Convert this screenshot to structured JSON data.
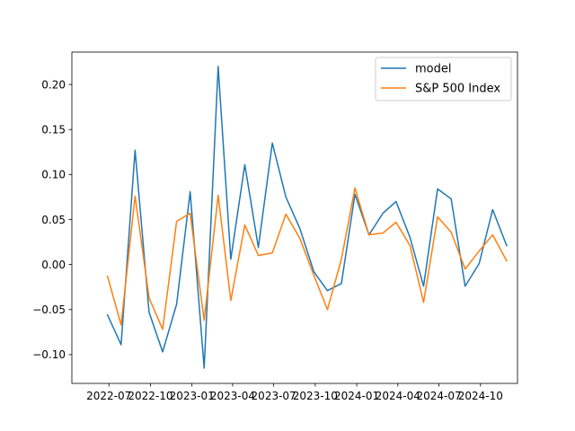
{
  "chart_data": {
    "type": "line",
    "title": "",
    "xlabel": "",
    "ylabel": "",
    "x": [
      "2022-06",
      "2022-07",
      "2022-08",
      "2022-09",
      "2022-10",
      "2022-11",
      "2022-12",
      "2023-01",
      "2023-02",
      "2023-03",
      "2023-04",
      "2023-05",
      "2023-06",
      "2023-07",
      "2023-08",
      "2023-09",
      "2023-10",
      "2023-11",
      "2023-12",
      "2024-01",
      "2024-02",
      "2024-03",
      "2024-04",
      "2024-05",
      "2024-06",
      "2024-07",
      "2024-08",
      "2024-09",
      "2024-10",
      "2024-11"
    ],
    "series": [
      {
        "name": "model",
        "color": "#1f77b4",
        "values": [
          -0.056,
          -0.089,
          0.127,
          -0.053,
          -0.097,
          -0.044,
          0.081,
          -0.115,
          0.22,
          0.006,
          0.111,
          0.019,
          0.135,
          0.075,
          0.04,
          -0.008,
          -0.029,
          -0.021,
          0.078,
          0.033,
          0.057,
          0.07,
          0.03,
          -0.024,
          0.084,
          0.073,
          -0.024,
          0.001,
          0.061,
          0.021
        ]
      },
      {
        "name": "S&P 500 Index",
        "color": "#ff7f0e",
        "values": [
          -0.013,
          -0.067,
          0.076,
          -0.037,
          -0.072,
          0.048,
          0.057,
          -0.062,
          0.077,
          -0.04,
          0.044,
          0.01,
          0.013,
          0.056,
          0.029,
          -0.012,
          -0.05,
          0.006,
          0.085,
          0.033,
          0.035,
          0.047,
          0.021,
          -0.042,
          0.053,
          0.036,
          -0.005,
          0.015,
          0.033,
          0.004
        ]
      }
    ],
    "xticks": [
      "2022-07",
      "2022-10",
      "2023-01",
      "2023-04",
      "2023-07",
      "2023-10",
      "2024-01",
      "2024-04",
      "2024-07",
      "2024-10"
    ],
    "yticks": [
      "−0.10",
      "−0.05",
      "0.00",
      "0.05",
      "0.10",
      "0.15",
      "0.20"
    ],
    "ylim": [
      -0.132,
      0.236
    ],
    "xlim": [
      "2022-04-10",
      "2024-12-22"
    ],
    "grid": false,
    "legend_position": "top-right"
  }
}
